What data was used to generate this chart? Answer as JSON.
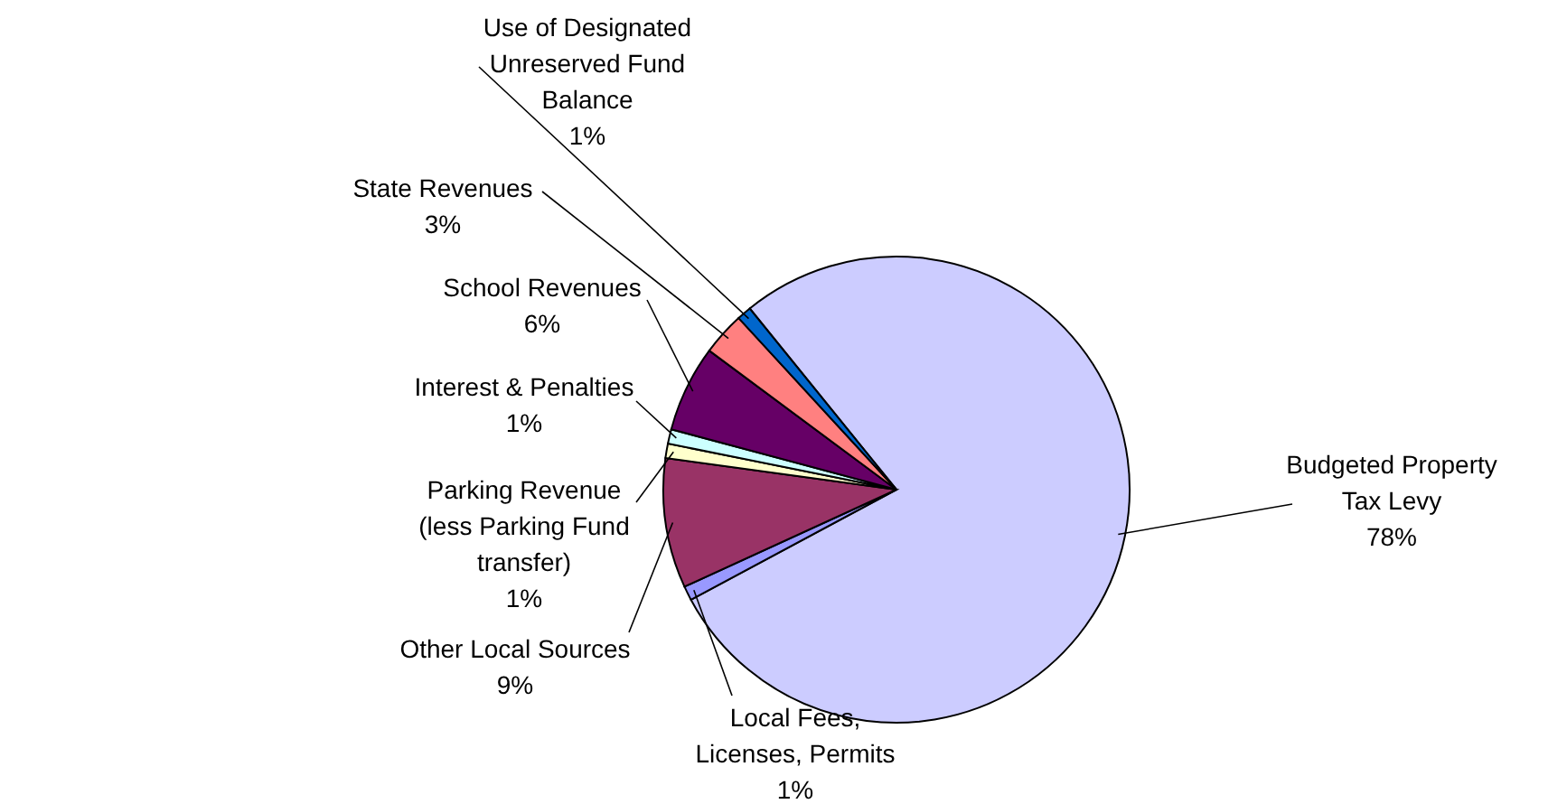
{
  "chart_data": {
    "type": "pie",
    "categories": [
      "Budgeted Property Tax Levy",
      "Local Fees, Licenses, Permits",
      "Other Local Sources",
      "Parking Revenue (less Parking Fund transfer)",
      "Interest & Penalties",
      "School Revenues",
      "State Revenues",
      "Use of Designated Unreserved Fund Balance"
    ],
    "values": [
      78,
      1,
      9,
      1,
      1,
      6,
      3,
      1
    ],
    "value_labels": [
      "78%",
      "1%",
      "9%",
      "1%",
      "1%",
      "6%",
      "3%",
      "1%"
    ],
    "colors": [
      "#ccccff",
      "#9999ff",
      "#993366",
      "#ffffcc",
      "#ccffff",
      "#660066",
      "#ff8080",
      "#0066cc"
    ],
    "legend": false
  }
}
